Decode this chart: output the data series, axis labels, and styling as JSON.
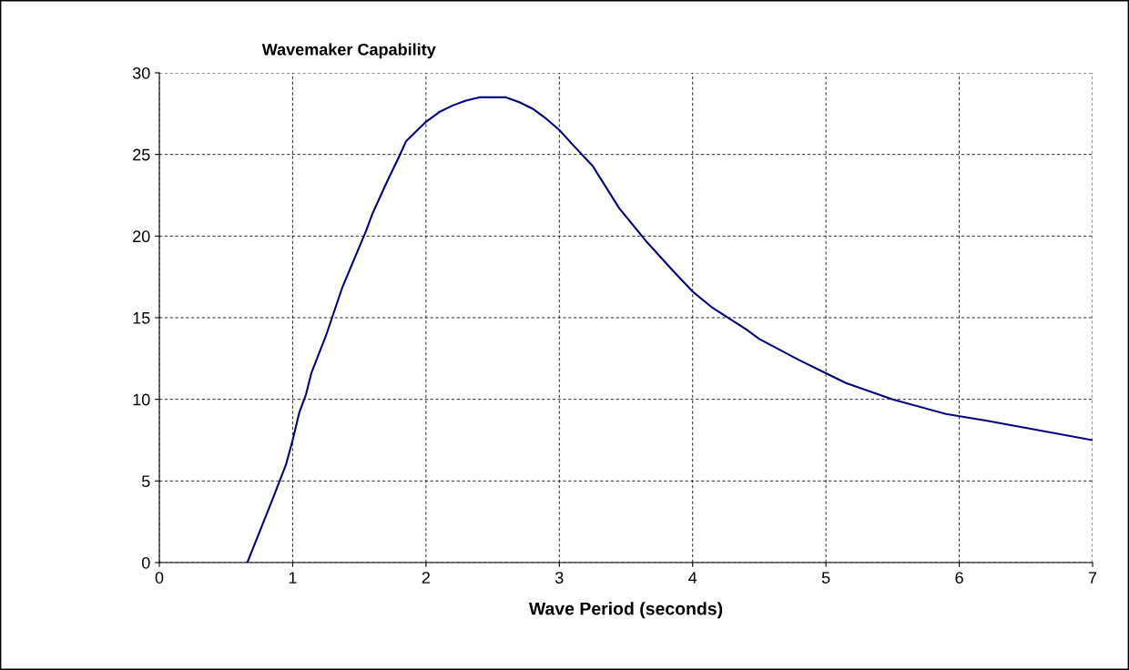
{
  "chart_data": {
    "type": "line",
    "title": "Wavemaker Capability",
    "xlabel": "Wave Period (seconds)",
    "xlim": [
      0,
      7
    ],
    "xticks": [
      0,
      1,
      2,
      3,
      4,
      5,
      6,
      7
    ],
    "ylim": [
      0,
      30
    ],
    "yticks": [
      0,
      5,
      10,
      15,
      20,
      25,
      30
    ],
    "grid": true,
    "legend": false,
    "marker": "none",
    "line_style": "solid",
    "series": [
      {
        "color": "#000080",
        "x": [
          0.66,
          0.85,
          0.95,
          1.0,
          1.05,
          1.1,
          1.14,
          1.25,
          1.37,
          1.55,
          1.6,
          1.7,
          1.8,
          1.85,
          2.0,
          2.1,
          2.2,
          2.3,
          2.4,
          2.6,
          2.7,
          2.8,
          2.9,
          3.0,
          3.1,
          3.25,
          3.45,
          3.65,
          3.85,
          4.0,
          4.15,
          4.4,
          4.5,
          4.8,
          5.0,
          5.15,
          5.5,
          5.9,
          6.2,
          6.6,
          7.0
        ],
        "values": [
          0,
          3.9,
          6.0,
          7.5,
          9.2,
          10.3,
          11.6,
          13.9,
          16.8,
          20.3,
          21.4,
          23.2,
          24.9,
          25.8,
          27.0,
          27.6,
          28.0,
          28.3,
          28.5,
          28.5,
          28.2,
          27.8,
          27.2,
          26.5,
          25.6,
          24.3,
          21.7,
          19.7,
          17.9,
          16.6,
          15.6,
          14.3,
          13.7,
          12.4,
          11.6,
          11.0,
          10.0,
          9.1,
          8.7,
          8.1,
          7.5
        ]
      }
    ]
  }
}
